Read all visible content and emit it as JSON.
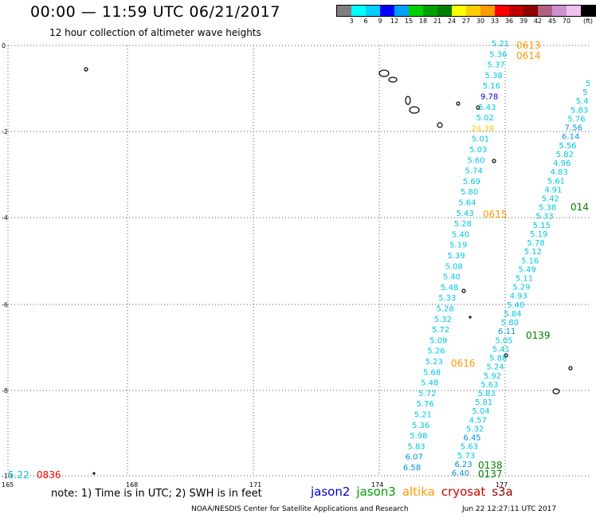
{
  "header": {
    "title": "00:00 — 11:59 UTC 06/21/2017",
    "subtitle": "12 hour collection of altimeter wave heights"
  },
  "color_scale": {
    "colors": [
      "#7f7f7f",
      "#00ffff",
      "#00d0ff",
      "#0000ff",
      "#00a0ff",
      "#00d000",
      "#00a000",
      "#008000",
      "#ffff00",
      "#ffcc00",
      "#ff9900",
      "#ff0000",
      "#c00000",
      "#900000",
      "#b06080",
      "#d090d0",
      "#f0c0f0",
      "#000000"
    ],
    "ticks": [
      "3",
      "6",
      "9",
      "12",
      "15",
      "18",
      "21",
      "24",
      "27",
      "30",
      "33",
      "36",
      "39",
      "42",
      "45",
      "70"
    ],
    "unit": "(ft)"
  },
  "axes": {
    "lat_labels": [
      "0",
      "-2",
      "-4",
      "-6",
      "-8",
      "-10"
    ],
    "lon_labels": [
      "165",
      "168",
      "171",
      "174",
      "177"
    ]
  },
  "tracks": [
    {
      "satellite": "jason3-cyan",
      "color": "#00c8e0",
      "points": [
        [
          "5.21",
          "#00c8e0"
        ],
        [
          "5.36",
          "#00c8e0"
        ],
        [
          "5.37",
          "#00c8e0"
        ],
        [
          "5.38",
          "#00c8e0"
        ],
        [
          "5.16",
          "#00c8e0"
        ],
        [
          "9.78",
          "#0000cc"
        ],
        [
          "5.43",
          "#00c8e0"
        ],
        [
          "5.02",
          "#00c8e0"
        ],
        [
          "24.39",
          "#ffcc00"
        ],
        [
          "5.01",
          "#00c8e0"
        ],
        [
          "5.03",
          "#00c8e0"
        ],
        [
          "5.60",
          "#00c8e0"
        ],
        [
          "5.74",
          "#00c8e0"
        ],
        [
          "5.69",
          "#00c8e0"
        ],
        [
          "5.80",
          "#00c8e0"
        ],
        [
          "5.64",
          "#00c8e0"
        ],
        [
          "5.43",
          "#00c8e0"
        ],
        [
          "5.28",
          "#00c8e0"
        ],
        [
          "5.40",
          "#00c8e0"
        ],
        [
          "5.19",
          "#00c8e0"
        ],
        [
          "5.39",
          "#00c8e0"
        ],
        [
          "5.08",
          "#00c8e0"
        ],
        [
          "5.40",
          "#00c8e0"
        ],
        [
          "5.48",
          "#00c8e0"
        ],
        [
          "5.33",
          "#00c8e0"
        ],
        [
          "5.28",
          "#00c8e0"
        ],
        [
          "5.32",
          "#00c8e0"
        ],
        [
          "5.72",
          "#00c8e0"
        ],
        [
          "5.09",
          "#00c8e0"
        ],
        [
          "5.26",
          "#00c8e0"
        ],
        [
          "5.23",
          "#00c8e0"
        ],
        [
          "5.68",
          "#00c8e0"
        ],
        [
          "5.48",
          "#00c8e0"
        ],
        [
          "5.72",
          "#00c8e0"
        ],
        [
          "5.76",
          "#00c8e0"
        ],
        [
          "5.21",
          "#00c8e0"
        ],
        [
          "5.36",
          "#00c8e0"
        ],
        [
          "5.98",
          "#00c8e0"
        ],
        [
          "5.83",
          "#00c8e0"
        ],
        [
          "6.07",
          "#0090e0"
        ],
        [
          "6.58",
          "#0090e0"
        ]
      ]
    },
    {
      "satellite": "jason2-east",
      "color": "#00c8e0",
      "points": [
        [
          "5",
          "#00c8e0"
        ],
        [
          "5",
          "#00c8e0"
        ],
        [
          "5.4",
          "#00c8e0"
        ],
        [
          "5.83",
          "#00c8e0"
        ],
        [
          "5.76",
          "#00c8e0"
        ],
        [
          "7.56",
          "#0090e0"
        ],
        [
          "6.14",
          "#0090e0"
        ],
        [
          "5.56",
          "#00c8e0"
        ],
        [
          "5.82",
          "#00c8e0"
        ],
        [
          "4.96",
          "#00c8e0"
        ],
        [
          "4.83",
          "#00c8e0"
        ],
        [
          "5.61",
          "#00c8e0"
        ],
        [
          "4.91",
          "#00c8e0"
        ],
        [
          "5.42",
          "#00c8e0"
        ],
        [
          "5.38",
          "#00c8e0"
        ],
        [
          "5.33",
          "#00c8e0"
        ],
        [
          "5.15",
          "#00c8e0"
        ],
        [
          "5.19",
          "#00c8e0"
        ],
        [
          "5.78",
          "#00c8e0"
        ],
        [
          "5.12",
          "#00c8e0"
        ],
        [
          "5.16",
          "#00c8e0"
        ],
        [
          "5.49",
          "#00c8e0"
        ],
        [
          "5.11",
          "#00c8e0"
        ],
        [
          "5.29",
          "#00c8e0"
        ],
        [
          "4.93",
          "#00c8e0"
        ],
        [
          "5.40",
          "#00c8e0"
        ],
        [
          "5.84",
          "#00c8e0"
        ],
        [
          "5.80",
          "#00c8e0"
        ],
        [
          "6.11",
          "#0090e0"
        ],
        [
          "5.05",
          "#00c8e0"
        ],
        [
          "5.41",
          "#00c8e0"
        ],
        [
          "5.88",
          "#00c8e0"
        ],
        [
          "5.24",
          "#00c8e0"
        ],
        [
          "5.92",
          "#00c8e0"
        ],
        [
          "5.63",
          "#00c8e0"
        ],
        [
          "5.83",
          "#00c8e0"
        ],
        [
          "5.81",
          "#00c8e0"
        ],
        [
          "5.04",
          "#00c8e0"
        ],
        [
          "4.57",
          "#00c8e0"
        ],
        [
          "5.32",
          "#00c8e0"
        ],
        [
          "6.45",
          "#0090e0"
        ],
        [
          "5.63",
          "#00c8e0"
        ],
        [
          "5.73",
          "#00c8e0"
        ],
        [
          "6.23",
          "#0090e0"
        ],
        [
          "6.40",
          "#0090e0"
        ]
      ]
    }
  ],
  "time_labels": [
    {
      "text": "0613",
      "color": "#ff9900"
    },
    {
      "text": "0614",
      "color": "#ff9900"
    },
    {
      "text": "0615",
      "color": "#ff9900"
    },
    {
      "text": "0616",
      "color": "#ff9900"
    },
    {
      "text": "014",
      "color": "#008000"
    },
    {
      "text": "0139",
      "color": "#008000"
    },
    {
      "text": "0138",
      "color": "#008000"
    },
    {
      "text": "0137",
      "color": "#008000"
    },
    {
      "text": "0836",
      "color": "#ff0000"
    },
    {
      "text": "5.22",
      "color": "#00c8e0"
    }
  ],
  "footer": {
    "note": "note: 1) Time is in UTC; 2) SWH is in feet",
    "legend": [
      {
        "name": "jason2",
        "color": "#0000cc"
      },
      {
        "name": "jason3",
        "color": "#00a000"
      },
      {
        "name": "altika",
        "color": "#ff9900"
      },
      {
        "name": "cryosat",
        "color": "#cc0000"
      },
      {
        "name": "s3a",
        "color": "#990000"
      }
    ],
    "credit": "NOAA/NESDIS Center for Satellite Applications and Research",
    "timestamp": "Jun 22 12:27:11 UTC 2017"
  }
}
